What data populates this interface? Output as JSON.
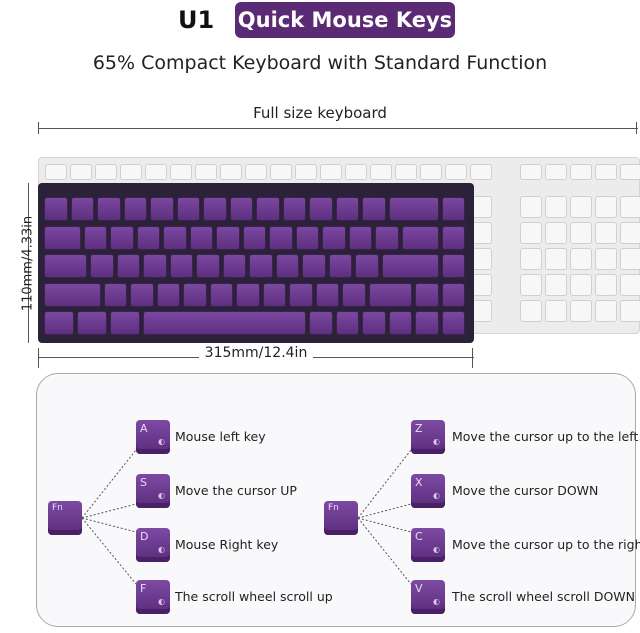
{
  "header": {
    "code": "U1",
    "badge": "Quick Mouse Keys",
    "badge_color": "#5b2a74",
    "subtitle": "65% Compact Keyboard with Standard Function"
  },
  "dimensions": {
    "full_label": "Full size keyboard",
    "height_label": "110mm/4.33in",
    "width_label": "315mm/12.4in"
  },
  "mouse_keys": {
    "modifier": "Fn",
    "left": [
      {
        "key": "A",
        "icon": "mouse-left-icon",
        "label": "Mouse left key"
      },
      {
        "key": "S",
        "icon": "mouse-up-icon",
        "label": "Move the cursor UP"
      },
      {
        "key": "D",
        "icon": "mouse-right-icon",
        "label": "Mouse Right key"
      },
      {
        "key": "F",
        "icon": "scroll-up-icon",
        "label": "The scroll wheel scroll up"
      }
    ],
    "right": [
      {
        "key": "Z",
        "icon": "cursor-up-left-icon",
        "label": "Move the cursor up to the left"
      },
      {
        "key": "X",
        "icon": "cursor-down-icon",
        "label": "Move the cursor DOWN"
      },
      {
        "key": "C",
        "icon": "cursor-up-right-icon",
        "label": "Move the cursor up to the right"
      },
      {
        "key": "V",
        "icon": "scroll-down-icon",
        "label": "The scroll wheel scroll DOWN"
      }
    ]
  }
}
